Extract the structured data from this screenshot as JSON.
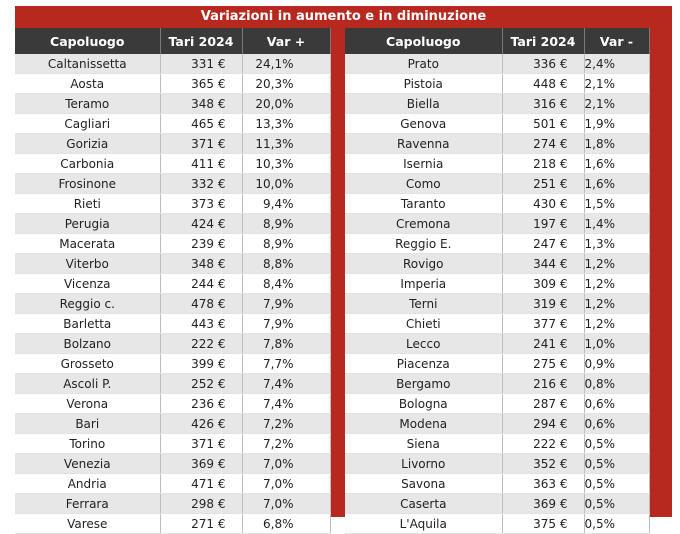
{
  "title": "Variazioni in aumento e in diminuzione",
  "colors": {
    "accent_red": "#b7281f",
    "header_dark": "#3a3a3a",
    "row_shade": "#e7e7e7"
  },
  "left_table": {
    "headers": [
      "Capoluogo",
      "Tari 2024",
      "Var +"
    ],
    "rows": [
      [
        "Caltanissetta",
        "331 €",
        "24,1%"
      ],
      [
        "Aosta",
        "365 €",
        "20,3%"
      ],
      [
        "Teramo",
        "348 €",
        "20,0%"
      ],
      [
        "Cagliari",
        "465 €",
        "13,3%"
      ],
      [
        "Gorizia",
        "371 €",
        "11,3%"
      ],
      [
        "Carbonia",
        "411 €",
        "10,3%"
      ],
      [
        "Frosinone",
        "332 €",
        "10,0%"
      ],
      [
        "Rieti",
        "373 €",
        "9,4%"
      ],
      [
        "Perugia",
        "424 €",
        "8,9%"
      ],
      [
        "Macerata",
        "239 €",
        "8,9%"
      ],
      [
        "Viterbo",
        "348 €",
        "8,8%"
      ],
      [
        "Vicenza",
        "244 €",
        "8,4%"
      ],
      [
        "Reggio c.",
        "478 €",
        "7,9%"
      ],
      [
        "Barletta",
        "443 €",
        "7,9%"
      ],
      [
        "Bolzano",
        "222 €",
        "7,8%"
      ],
      [
        "Grosseto",
        "399 €",
        "7,7%"
      ],
      [
        "Ascoli P.",
        "252 €",
        "7,4%"
      ],
      [
        "Verona",
        "236 €",
        "7,4%"
      ],
      [
        "Bari",
        "426 €",
        "7,2%"
      ],
      [
        "Torino",
        "371 €",
        "7,2%"
      ],
      [
        "Venezia",
        "369 €",
        "7,0%"
      ],
      [
        "Andria",
        "471 €",
        "7,0%"
      ],
      [
        "Ferrara",
        "298 €",
        "7,0%"
      ],
      [
        "Varese",
        "271 €",
        "6,8%"
      ]
    ]
  },
  "right_table": {
    "headers": [
      "Capoluogo",
      "Tari 2024",
      "Var -"
    ],
    "rows": [
      [
        "Prato",
        "336 €",
        "2,4%"
      ],
      [
        "Pistoia",
        "448 €",
        "2,1%"
      ],
      [
        "Biella",
        "316 €",
        "2,1%"
      ],
      [
        "Genova",
        "501 €",
        "1,9%"
      ],
      [
        "Ravenna",
        "274 €",
        "1,8%"
      ],
      [
        "Isernia",
        "218 €",
        "1,6%"
      ],
      [
        "Como",
        "251 €",
        "1,6%"
      ],
      [
        "Taranto",
        "430 €",
        "1,5%"
      ],
      [
        "Cremona",
        "197 €",
        "1,4%"
      ],
      [
        "Reggio E.",
        "247 €",
        "1,3%"
      ],
      [
        "Rovigo",
        "344 €",
        "1,2%"
      ],
      [
        "Imperia",
        "309 €",
        "1,2%"
      ],
      [
        "Terni",
        "319 €",
        "1,2%"
      ],
      [
        "Chieti",
        "377 €",
        "1,2%"
      ],
      [
        "Lecco",
        "241 €",
        "1,0%"
      ],
      [
        "Piacenza",
        "275 €",
        "0,9%"
      ],
      [
        "Bergamo",
        "216 €",
        "0,8%"
      ],
      [
        "Bologna",
        "287 €",
        "0,6%"
      ],
      [
        "Modena",
        "294 €",
        "0,6%"
      ],
      [
        "Siena",
        "222 €",
        "0,5%"
      ],
      [
        "Livorno",
        "352 €",
        "0,5%"
      ],
      [
        "Savona",
        "363 €",
        "0,5%"
      ],
      [
        "Caserta",
        "369 €",
        "0,5%"
      ],
      [
        "L'Aquila",
        "375 €",
        "0,5%"
      ]
    ]
  }
}
